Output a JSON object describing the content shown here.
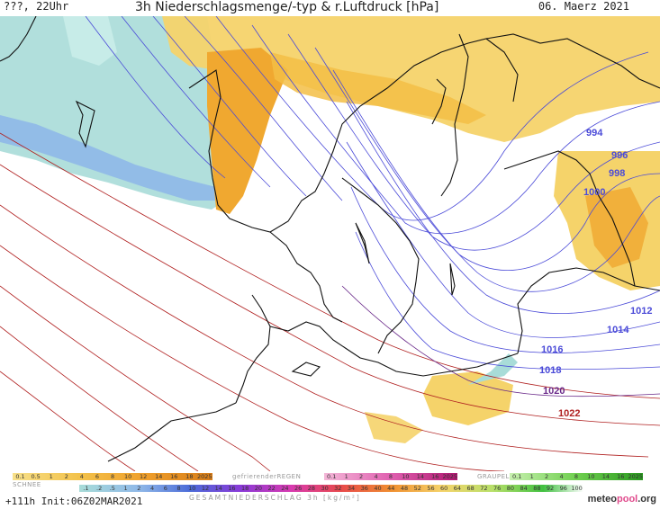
{
  "header": {
    "left": "???, 22Uhr",
    "title": "3h Niederschlagsmenge/-typ & r.Luftdruck [hPa]",
    "date": "06. Maerz 2021"
  },
  "isobars": [
    {
      "value": "994",
      "color": "#4b4bd8"
    },
    {
      "value": "996",
      "color": "#4b4bd8"
    },
    {
      "value": "998",
      "color": "#4b4bd8"
    },
    {
      "value": "1000",
      "color": "#4b4bd8"
    },
    {
      "value": "1012",
      "color": "#4b4bd8"
    },
    {
      "value": "1014",
      "color": "#4b4bd8"
    },
    {
      "value": "1016",
      "color": "#4b4bd8"
    },
    {
      "value": "1018",
      "color": "#4b4bd8"
    },
    {
      "value": "1020",
      "color": "#6a2a8a"
    },
    {
      "value": "1022",
      "color": "#b02020"
    }
  ],
  "legend": {
    "snow_label": "SCHNEE",
    "snow_scale": [
      "0.1",
      "0.5",
      "1",
      "2",
      "4",
      "6",
      "8",
      "10",
      "12",
      "14",
      "16",
      "18",
      "2025+"
    ],
    "freezing_label": "gefrierenderREGEN",
    "freezing_scale": [
      "0.1",
      "1",
      "2",
      "4",
      "8",
      "10",
      "14",
      "16",
      "2025+"
    ],
    "graupel_label": "GRAUPEL",
    "graupel_scale": [
      "0.1",
      "1",
      "2",
      "4",
      "8",
      "10",
      "14",
      "16",
      "2025+"
    ],
    "total_scale": [
      ".1",
      ".2",
      ".5",
      "1",
      "2",
      "4",
      "6",
      "8",
      "10",
      "12",
      "14",
      "16",
      "18",
      "20",
      "22",
      "24",
      "26",
      "28",
      "30",
      "32",
      "34",
      "36",
      "40",
      "44",
      "48",
      "52",
      "56",
      "60",
      "64",
      "68",
      "72",
      "76",
      "80",
      "84",
      "88",
      "92",
      "96",
      "100"
    ],
    "total_label": "GESAMTNIEDERSCHLAG 3h [kg/m²]"
  },
  "footer": {
    "init": "+111h Init:06Z02MAR2021",
    "brand_1": "meteo",
    "brand_2": "pool",
    "brand_3": ".org"
  },
  "colors": {
    "snow_light": "#a8dcd8",
    "snow_mid": "#8fb8e8",
    "rain_yellow": "#f5d36a",
    "rain_orange": "#f0a830",
    "isobar_blue": "#4b4bd8",
    "isobar_red": "#b02020",
    "coast": "#111111"
  }
}
